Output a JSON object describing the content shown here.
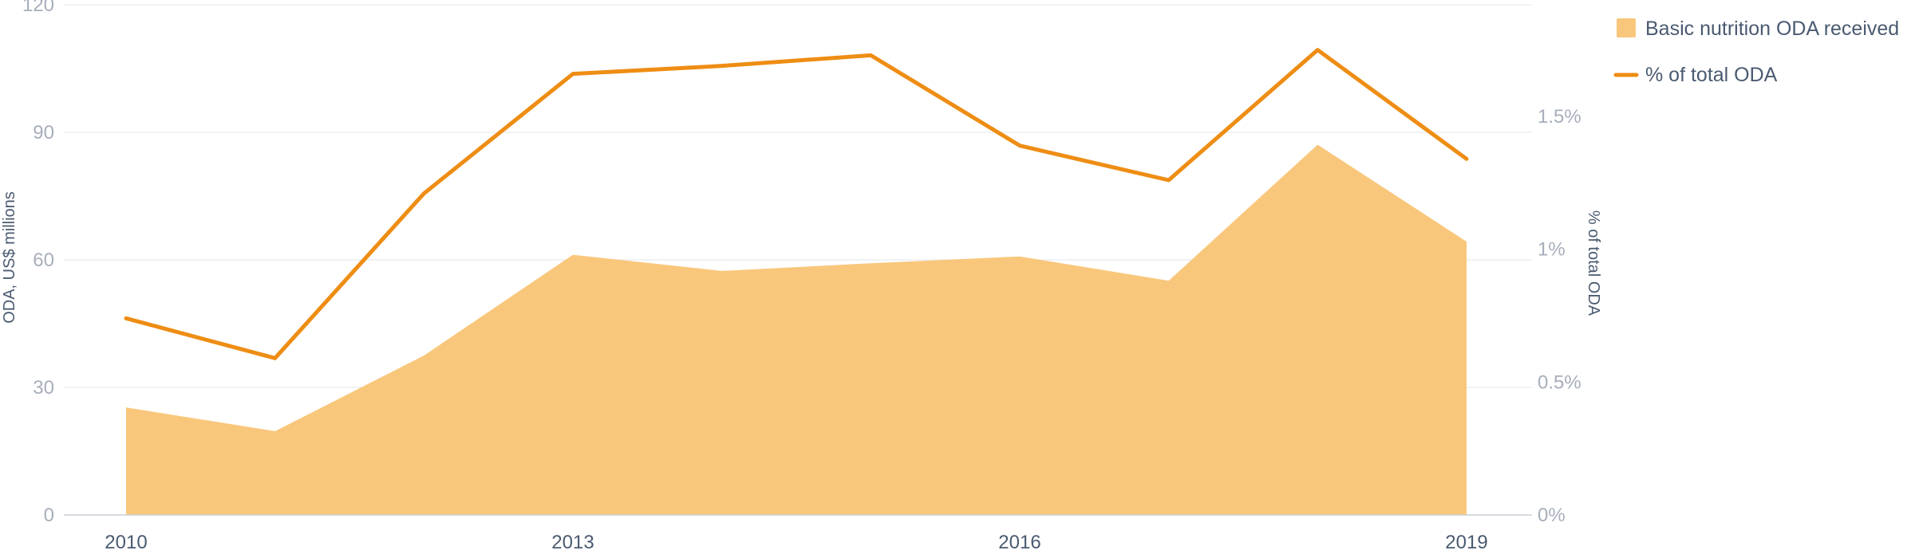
{
  "chart_data": {
    "type": "area",
    "title": "",
    "x": [
      2010,
      2011,
      2012,
      2013,
      2014,
      2015,
      2016,
      2017,
      2018,
      2019
    ],
    "x_tick_labels": [
      "2010",
      "2013",
      "2016",
      "2019"
    ],
    "x_tick_values": [
      2010,
      2013,
      2016,
      2019
    ],
    "y_left": {
      "label": "ODA, US$ millions",
      "range": [
        0,
        120
      ],
      "ticks": [
        "0",
        "30",
        "60",
        "90",
        "120"
      ],
      "tick_values": [
        0,
        30,
        60,
        90,
        120
      ]
    },
    "y_right": {
      "label": "% of total ODA",
      "range": [
        0,
        1.92
      ],
      "ticks": [
        "0%",
        "0.5%",
        "1%",
        "1.5%"
      ],
      "tick_values": [
        0,
        0.5,
        1.0,
        1.5
      ]
    },
    "grid": true,
    "legend_position": "top-right",
    "series": [
      {
        "name": "Basic nutrition ODA received",
        "type": "area",
        "axis": "left",
        "color": "#f9c77c",
        "values": [
          25.3,
          19.7,
          37.5,
          61.2,
          57.4,
          59.2,
          60.8,
          55.1,
          87.1,
          64.3
        ]
      },
      {
        "name": "% of total ODA",
        "type": "line",
        "axis": "right",
        "color": "#ee8d14",
        "values": [
          0.74,
          0.59,
          1.21,
          1.66,
          1.69,
          1.73,
          1.39,
          1.26,
          1.75,
          1.34
        ]
      }
    ]
  }
}
